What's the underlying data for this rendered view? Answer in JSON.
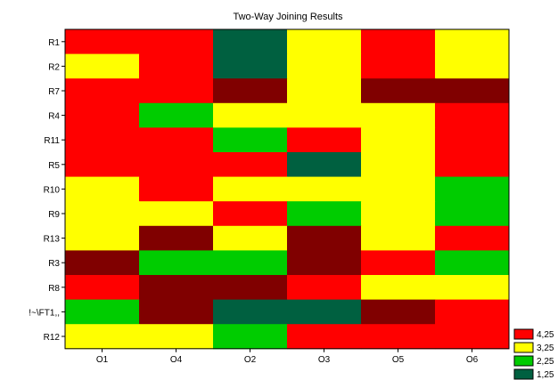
{
  "chart_data": {
    "type": "heatmap",
    "title": "Two-Way Joining Results",
    "columns": [
      "O1",
      "O4",
      "O2",
      "O3",
      "O5",
      "O6"
    ],
    "rows": [
      "R1",
      "R2",
      "R7",
      "R4",
      "R11",
      "R5",
      "R10",
      "R9",
      "R13",
      "R3",
      "R8",
      "!~\\FT1,,",
      "R12"
    ],
    "cells": [
      [
        4,
        4,
        1,
        3,
        4,
        3
      ],
      [
        3,
        4,
        1,
        3,
        4,
        3
      ],
      [
        4,
        4,
        5,
        3,
        5,
        5
      ],
      [
        4,
        2,
        3,
        3,
        3,
        4
      ],
      [
        4,
        4,
        2,
        4,
        3,
        4
      ],
      [
        4,
        4,
        4,
        1,
        3,
        4
      ],
      [
        3,
        4,
        3,
        3,
        3,
        2
      ],
      [
        3,
        3,
        4,
        2,
        3,
        2
      ],
      [
        3,
        5,
        3,
        5,
        3,
        4
      ],
      [
        5,
        2,
        2,
        5,
        4,
        2
      ],
      [
        4,
        5,
        5,
        4,
        3,
        3
      ],
      [
        2,
        5,
        1,
        1,
        5,
        4
      ],
      [
        3,
        3,
        2,
        4,
        4,
        4
      ]
    ],
    "color_levels": [
      {
        "level": 5,
        "color": "#800000",
        "label": ""
      },
      {
        "level": 4,
        "color": "#ff0000",
        "label": "4,25"
      },
      {
        "level": 3,
        "color": "#ffff00",
        "label": "3,25"
      },
      {
        "level": 2,
        "color": "#00cc00",
        "label": "2,25"
      },
      {
        "level": 1,
        "color": "#006040",
        "label": "1,25"
      }
    ],
    "legend_position": "right"
  }
}
